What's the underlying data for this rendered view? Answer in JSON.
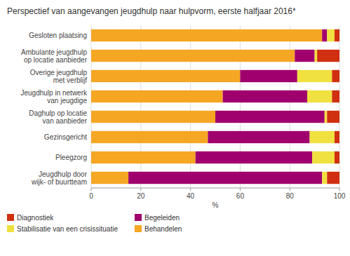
{
  "chart_data": {
    "type": "bar",
    "orientation": "horizontal",
    "stacked": true,
    "title": "Perspectief van aangevangen jeugdhulp naar hulpvorm, eerste halfjaar 2016*",
    "categories": [
      "Gesloten plaatsing",
      "Ambulante jeugdhulp\nop locatie aanbieder",
      "Overige jeugdhulp\nmet verblijf",
      "Jeugdhulp in netwerk\nvan jeugdige",
      "Daghulp op locatie\nvan aanbieder",
      "Gezinsgericht",
      "Pleegzorg",
      "Jeugdhulp door\nwijk- of buurtteam"
    ],
    "series": [
      {
        "name": "Behandelen",
        "color": "#F5A623",
        "values": [
          93,
          82,
          60,
          53,
          50,
          47,
          42,
          15
        ]
      },
      {
        "name": "Begeleiden",
        "color": "#A0006E",
        "values": [
          2,
          8,
          23,
          34,
          44,
          41,
          47,
          78
        ]
      },
      {
        "name": "Stabilisatie van een crisissituatie",
        "color": "#F0E040",
        "values": [
          3,
          1,
          14,
          10,
          1,
          10,
          9,
          2
        ]
      },
      {
        "name": "Diagnostiek",
        "color": "#D03010",
        "values": [
          2,
          9,
          3,
          3,
          5,
          2,
          2,
          5
        ]
      }
    ],
    "x_label": "%",
    "xlim": [
      0,
      100
    ],
    "xticks": [
      0,
      20,
      40,
      60,
      80,
      100
    ],
    "grid": true,
    "legend": "bottom"
  }
}
